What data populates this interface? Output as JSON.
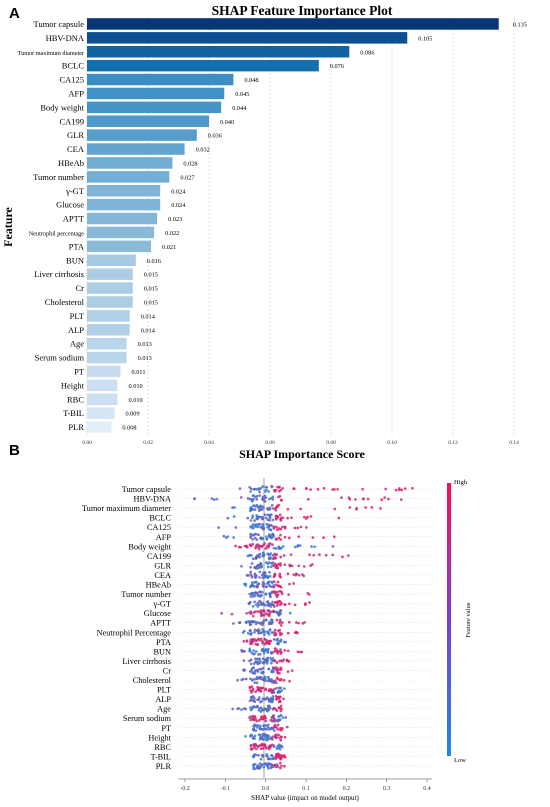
{
  "panels": {
    "a_letter": "A",
    "b_letter": "B"
  },
  "chart_data": [
    {
      "type": "bar",
      "orientation": "horizontal",
      "title": "SHAP Feature Importance Plot",
      "xlabel": "SHAP Importance Score",
      "ylabel": "Feature",
      "xlim": [
        0,
        0.14
      ],
      "xticks": [
        "0.00",
        "0.02",
        "0.04",
        "0.06",
        "0.08",
        "0.10",
        "0.12",
        "0.14"
      ],
      "grid": true,
      "categories": [
        "Tumor capsule",
        "HBV-DNA",
        "Tumor maximum diameter",
        "BCLC",
        "CA125",
        "AFP",
        "Body weight",
        "CA199",
        "GLR",
        "CEA",
        "HBeAb",
        "Tumor number",
        "γ-GT",
        "Glucose",
        "APTT",
        "Neutrophil percentage",
        "PTA",
        "BUN",
        "Liver cirrhosis",
        "Cr",
        "Cholesterol",
        "PLT",
        "ALP",
        "Age",
        "Serum sodium",
        "PT",
        "Height",
        "RBC",
        "T-BIL",
        "PLR"
      ],
      "values": [
        0.135,
        0.105,
        0.086,
        0.076,
        0.048,
        0.045,
        0.044,
        0.04,
        0.036,
        0.032,
        0.028,
        0.027,
        0.024,
        0.024,
        0.023,
        0.022,
        0.021,
        0.016,
        0.015,
        0.015,
        0.015,
        0.014,
        0.014,
        0.013,
        0.013,
        0.011,
        0.01,
        0.01,
        0.009,
        0.008
      ],
      "value_labels": [
        "0.135",
        "0.105",
        "0.086",
        "0.076",
        "0.048",
        "0.045",
        "0.044",
        "0.040",
        "0.036",
        "0.032",
        "0.028",
        "0.027",
        "0.024",
        "0.024",
        "0.023",
        "0.022",
        "0.021",
        "0.016",
        "0.015",
        "0.015",
        "0.015",
        "0.014",
        "0.014",
        "0.013",
        "0.013",
        "0.011",
        "0.010",
        "0.010",
        "0.009",
        "0.008"
      ],
      "colormap": [
        "#0a3575",
        "#0e4f94",
        "#146ea9",
        "#2f86bf",
        "#5a9fce",
        "#8cbbd9",
        "#c3dbee",
        "#e4eef8"
      ]
    },
    {
      "type": "scatter",
      "subtype": "beeswarm",
      "xlabel": "SHAP value (impact on model output)",
      "xlim": [
        -0.2,
        0.4
      ],
      "xticks": [
        "-0.2",
        "-0.1",
        "0.0",
        "0.1",
        "0.2",
        "0.3",
        "0.4"
      ],
      "colorbar": {
        "label": "Feature value",
        "high": "High",
        "low": "Low",
        "high_color": "#ff0d57",
        "low_color": "#1e88e5"
      },
      "features": [
        {
          "name": "Tumor capsule",
          "min": -0.09,
          "max": 0.39,
          "low_side": "neg"
        },
        {
          "name": "HBV-DNA",
          "min": -0.19,
          "max": 0.35,
          "low_side": "neg"
        },
        {
          "name": "Tumor maximum diameter",
          "min": -0.1,
          "max": 0.3,
          "low_side": "neg"
        },
        {
          "name": "BCLC",
          "min": -0.1,
          "max": 0.2,
          "low_side": "neg"
        },
        {
          "name": "CA125",
          "min": -0.12,
          "max": 0.18,
          "low_side": "neg"
        },
        {
          "name": "AFP",
          "min": -0.11,
          "max": 0.2,
          "low_side": "neg"
        },
        {
          "name": "Body weight",
          "min": -0.1,
          "max": 0.17,
          "low_side": "pos"
        },
        {
          "name": "CA199",
          "min": -0.08,
          "max": 0.24,
          "low_side": "neg"
        },
        {
          "name": "GLR",
          "min": -0.09,
          "max": 0.13,
          "low_side": "neg"
        },
        {
          "name": "CEA",
          "min": -0.07,
          "max": 0.11,
          "low_side": "neg"
        },
        {
          "name": "HBeAb",
          "min": -0.06,
          "max": 0.08,
          "low_side": "neg"
        },
        {
          "name": "Tumor number",
          "min": -0.05,
          "max": 0.12,
          "low_side": "neg"
        },
        {
          "name": "γ-GT",
          "min": -0.08,
          "max": 0.11,
          "low_side": "neg"
        },
        {
          "name": "Glucose",
          "min": -0.11,
          "max": 0.08,
          "low_side": "pos"
        },
        {
          "name": "APTT",
          "min": -0.08,
          "max": 0.1,
          "low_side": "neg"
        },
        {
          "name": "Neutrophil Percentage",
          "min": -0.06,
          "max": 0.08,
          "low_side": "neg"
        },
        {
          "name": "PTA",
          "min": -0.06,
          "max": 0.07,
          "low_side": "pos"
        },
        {
          "name": "BUN",
          "min": -0.06,
          "max": 0.1,
          "low_side": "neg"
        },
        {
          "name": "Liver cirrhosis",
          "min": -0.06,
          "max": 0.06,
          "low_side": "neg"
        },
        {
          "name": "Cr",
          "min": -0.06,
          "max": 0.07,
          "low_side": "neg"
        },
        {
          "name": "Cholesterol",
          "min": -0.07,
          "max": 0.07,
          "low_side": "neg"
        },
        {
          "name": "PLT",
          "min": -0.04,
          "max": 0.06,
          "low_side": "pos"
        },
        {
          "name": "ALP",
          "min": -0.04,
          "max": 0.06,
          "low_side": "neg"
        },
        {
          "name": "Age",
          "min": -0.11,
          "max": 0.04,
          "low_side": "neg"
        },
        {
          "name": "Serum sodium",
          "min": -0.04,
          "max": 0.06,
          "low_side": "pos"
        },
        {
          "name": "PT",
          "min": -0.03,
          "max": 0.06,
          "low_side": "neg"
        },
        {
          "name": "Height",
          "min": -0.05,
          "max": 0.05,
          "low_side": "neg"
        },
        {
          "name": "RBC",
          "min": -0.04,
          "max": 0.05,
          "low_side": "pos"
        },
        {
          "name": "T-BIL",
          "min": -0.03,
          "max": 0.05,
          "low_side": "neg"
        },
        {
          "name": "PLR",
          "min": -0.03,
          "max": 0.05,
          "low_side": "neg"
        }
      ]
    }
  ]
}
